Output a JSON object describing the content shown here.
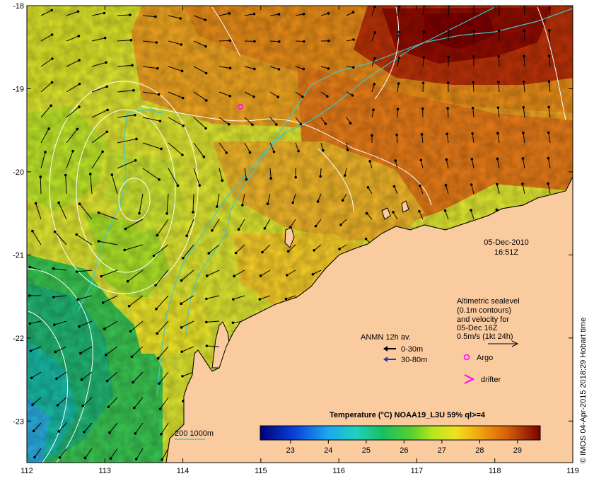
{
  "map": {
    "lon_ticks": [
      "112",
      "113",
      "114",
      "115",
      "116",
      "117",
      "118",
      "119"
    ],
    "lat_ticks": [
      "-18",
      "-19",
      "-20",
      "-21",
      "-22",
      "-23"
    ],
    "date": "05-Dec-2010",
    "time": "16:51Z",
    "altimetric_lines": [
      "Altimetric sealevel",
      "(0.1m contours)",
      "and velocity for",
      "05-Dec 16Z",
      "0.5m/s (1kt 24h)"
    ],
    "anmn_title": "ANMN 12h av.",
    "anmn_0_30": "0-30m",
    "anmn_30_80": "30-80m",
    "argo_label": "Argo",
    "drifter_label": "drifter",
    "isobath_label": "200  1000m",
    "colorbar_title": "Temperature (°C) NOAA19_L3U 59% ql>=4",
    "colorbar_ticks": [
      "23",
      "24",
      "25",
      "26",
      "27",
      "28",
      "29"
    ],
    "credit": "© IMOS 04-Apr-2015 2018:29 Hobart time",
    "colors": {
      "land": "#fbcba0",
      "isobath": "#40c8c8",
      "contour": "#ffffff",
      "argo": "#ff00ff",
      "arrow_shallow": "#000000",
      "arrow_deep": "#1f3fb4"
    }
  }
}
